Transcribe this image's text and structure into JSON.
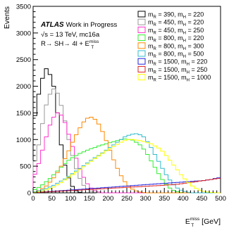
{
  "chart_data": {
    "type": "line",
    "style": "step-histogram",
    "xlabel_main": "E",
    "xlabel_sup": "miss",
    "xlabel_sub": "T",
    "xlabel_unit": " [GeV]",
    "ylabel": "Events",
    "xlim": [
      0,
      500
    ],
    "ylim": [
      0,
      3500
    ],
    "bin_width": 10,
    "x_ticks": [
      0,
      50,
      100,
      150,
      200,
      250,
      300,
      350,
      400,
      450,
      500
    ],
    "y_ticks": [
      0,
      500,
      1000,
      1500,
      2000,
      2500,
      3000,
      3500
    ],
    "legend_position": "top-right",
    "annotations": {
      "experiment": "ATLAS",
      "status": "Work in Progress",
      "energy": "√s  = 13 TeV, mc16a",
      "process": "R→ SH→ 4l + E",
      "process_sup": "miss",
      "process_sub": "T"
    },
    "series": [
      {
        "name": "m_R = 390, m_H = 220",
        "label_R": "390",
        "label_H": "220",
        "color": "#000000",
        "values": [
          1450,
          1850,
          2150,
          2330,
          2220,
          2000,
          1500,
          900,
          520,
          280,
          120,
          40,
          10,
          0,
          0,
          0,
          0,
          0,
          0,
          0,
          0,
          0,
          0,
          0,
          0,
          0,
          0,
          0,
          0,
          0,
          0,
          0,
          0,
          0,
          0,
          0,
          0,
          0,
          0,
          0,
          0,
          0,
          0,
          0,
          0,
          0,
          0,
          0,
          0,
          0
        ]
      },
      {
        "name": "m_R = 450, m_H = 220",
        "label_R": "450",
        "label_H": "220",
        "color": "#999999",
        "values": [
          600,
          900,
          1300,
          1650,
          1850,
          1950,
          1870,
          1640,
          1350,
          1000,
          700,
          450,
          270,
          140,
          70,
          30,
          10,
          0,
          0,
          0,
          0,
          0,
          0,
          0,
          0,
          0,
          0,
          0,
          0,
          0,
          0,
          0,
          0,
          0,
          0,
          0,
          0,
          0,
          0,
          0,
          0,
          0,
          0,
          0,
          0,
          0,
          0,
          0,
          0,
          0
        ]
      },
      {
        "name": "m_R = 450, m_H = 250",
        "label_R": "450",
        "label_H": "250",
        "color": "#ff33cc",
        "values": [
          350,
          550,
          800,
          1050,
          1270,
          1420,
          1500,
          1460,
          1320,
          1100,
          870,
          650,
          450,
          290,
          170,
          90,
          40,
          15,
          0,
          0,
          0,
          0,
          0,
          0,
          0,
          0,
          0,
          0,
          0,
          0,
          0,
          0,
          0,
          0,
          0,
          0,
          0,
          0,
          0,
          0,
          0,
          0,
          0,
          0,
          0,
          0,
          0,
          0,
          0,
          0
        ]
      },
      {
        "name": "m_R = 800, m_H = 220",
        "label_R": "800",
        "label_H": "220",
        "color": "#33ee33",
        "values": [
          60,
          100,
          150,
          210,
          270,
          340,
          410,
          480,
          550,
          610,
          660,
          700,
          740,
          770,
          800,
          830,
          850,
          880,
          900,
          920,
          940,
          960,
          980,
          1000,
          1010,
          1000,
          990,
          950,
          900,
          820,
          720,
          600,
          480,
          360,
          250,
          160,
          90,
          45,
          20,
          8,
          0,
          0,
          0,
          0,
          0,
          0,
          0,
          0,
          0,
          0
        ]
      },
      {
        "name": "m_R = 800, m_H = 300",
        "label_R": "800",
        "label_H": "300",
        "color": "#ff8800",
        "values": [
          20,
          40,
          80,
          130,
          200,
          280,
          380,
          500,
          640,
          790,
          950,
          1090,
          1220,
          1330,
          1400,
          1420,
          1380,
          1290,
          1150,
          980,
          800,
          620,
          460,
          320,
          210,
          130,
          70,
          35,
          15,
          5,
          0,
          0,
          0,
          0,
          0,
          0,
          0,
          0,
          0,
          0,
          0,
          0,
          0,
          0,
          0,
          0,
          0,
          0,
          0,
          0
        ]
      },
      {
        "name": "m_R = 800, m_H = 500",
        "label_R": "800",
        "label_H": "500",
        "color": "#33bbcc",
        "values": [
          20,
          35,
          55,
          80,
          110,
          140,
          180,
          220,
          260,
          310,
          360,
          410,
          460,
          510,
          560,
          610,
          660,
          700,
          750,
          800,
          850,
          900,
          950,
          1000,
          1050,
          1080,
          1100,
          1110,
          1090,
          1050,
          960,
          850,
          720,
          590,
          460,
          340,
          240,
          150,
          90,
          50,
          25,
          10,
          0,
          0,
          0,
          0,
          0,
          0,
          0,
          0
        ]
      },
      {
        "name": "m_R = 1500, m_H = 220",
        "label_R": "1500",
        "label_H": "220",
        "color": "#2222dd",
        "values": [
          5,
          10,
          15,
          20,
          25,
          30,
          35,
          40,
          45,
          50,
          55,
          60,
          65,
          70,
          75,
          80,
          85,
          90,
          95,
          100,
          105,
          110,
          115,
          120,
          125,
          130,
          135,
          140,
          145,
          150,
          155,
          160,
          165,
          170,
          175,
          180,
          185,
          190,
          195,
          200,
          205,
          210,
          215,
          220,
          225,
          230,
          240,
          250,
          270,
          280
        ]
      },
      {
        "name": "m_R = 1500, m_H = 250",
        "label_R": "1500",
        "label_H": "250",
        "color": "#dd2222",
        "values": [
          5,
          8,
          12,
          16,
          20,
          24,
          28,
          32,
          36,
          40,
          44,
          48,
          52,
          56,
          60,
          64,
          68,
          72,
          76,
          80,
          84,
          88,
          92,
          96,
          100,
          104,
          108,
          112,
          116,
          120,
          124,
          128,
          132,
          136,
          140,
          145,
          150,
          155,
          160,
          170,
          180,
          190,
          200,
          210,
          220,
          230,
          240,
          250,
          260,
          270
        ]
      },
      {
        "name": "m_R = 1500, m_H = 1000",
        "label_R": "1500",
        "label_H": "1000",
        "color": "#ffff00",
        "values": [
          10,
          20,
          35,
          55,
          80,
          110,
          150,
          190,
          240,
          290,
          340,
          390,
          440,
          490,
          540,
          590,
          640,
          690,
          740,
          790,
          830,
          870,
          910,
          950,
          980,
          1000,
          1000,
          990,
          980,
          960,
          940,
          920,
          880,
          840,
          780,
          700,
          610,
          520,
          430,
          340,
          260,
          190,
          130,
          85,
          50,
          28,
          14,
          6,
          2,
          0
        ]
      }
    ]
  }
}
